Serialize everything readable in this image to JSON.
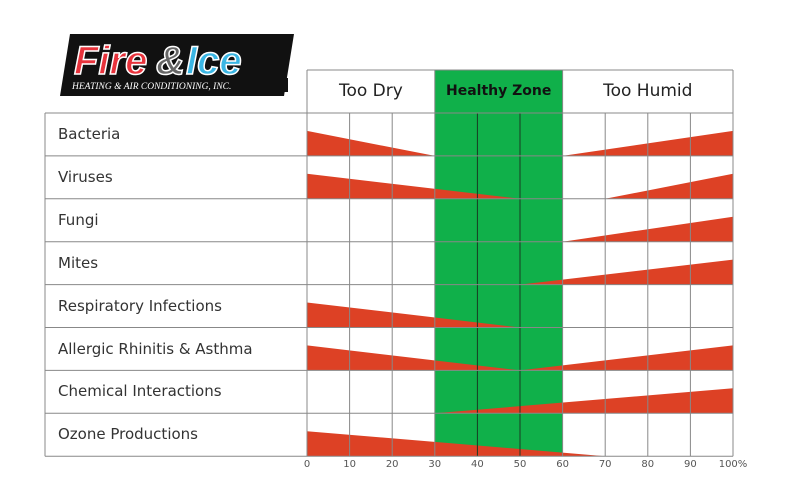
{
  "logo": {
    "brand_fire": "Fire",
    "brand_amp": "&",
    "brand_ice": "Ice",
    "tagline": "HEATING & AIR CONDITIONING, INC."
  },
  "chart_data": {
    "type": "table",
    "title": "",
    "zones": [
      {
        "label": "Too Dry",
        "range": [
          0,
          30
        ]
      },
      {
        "label": "Healthy Zone",
        "range": [
          30,
          60
        ],
        "color": "#10b04a"
      },
      {
        "label": "Too Humid",
        "range": [
          60,
          100
        ]
      }
    ],
    "x_ticks": [
      "0",
      "10",
      "20",
      "30",
      "40",
      "50",
      "60",
      "70",
      "80",
      "90",
      "100%"
    ],
    "xlim": [
      0,
      100
    ],
    "bar_color": "#dd4125",
    "rows": [
      {
        "label": "Bacteria",
        "dry_end": 30,
        "humid_start": 60
      },
      {
        "label": "Viruses",
        "dry_end": 50,
        "humid_start": 70
      },
      {
        "label": "Fungi",
        "dry_end": null,
        "humid_start": 60
      },
      {
        "label": "Mites",
        "dry_end": null,
        "humid_start": 50
      },
      {
        "label": "Respiratory Infections",
        "dry_end": 50,
        "humid_start": null
      },
      {
        "label": "Allergic Rhinitis & Asthma",
        "dry_end": 50,
        "humid_start": 50
      },
      {
        "label": "Chemical Interactions",
        "dry_end": null,
        "humid_start": 30
      },
      {
        "label": "Ozone Productions",
        "dry_end": 70,
        "humid_start": null
      }
    ]
  }
}
